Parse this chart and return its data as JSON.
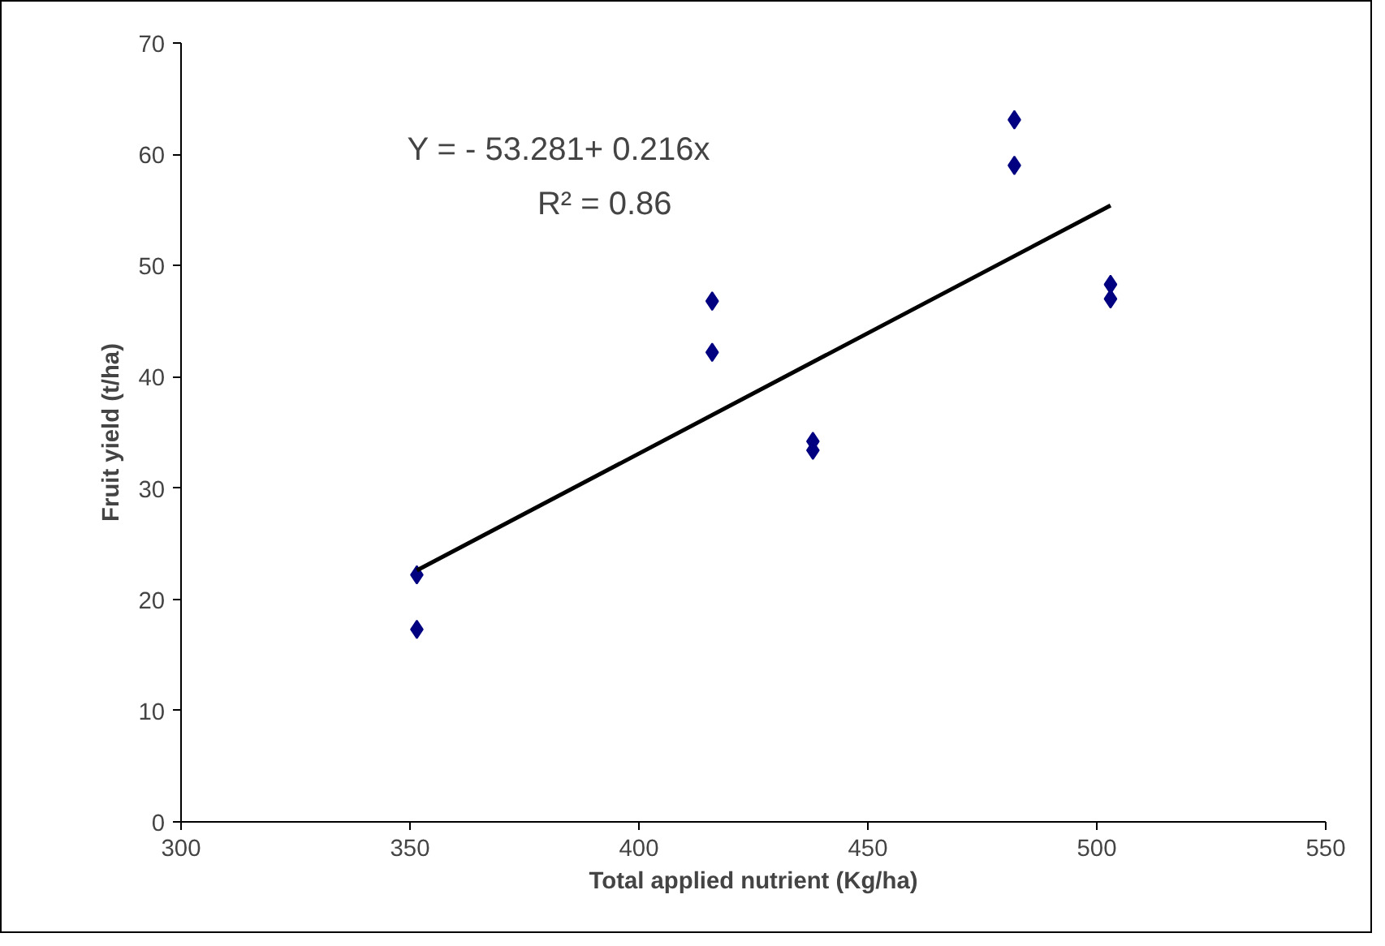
{
  "chart_data": {
    "type": "scatter",
    "xlabel": "Total applied nutrient (Kg/ha)",
    "ylabel": "Fruit yield (t/ha)",
    "annotations": [
      "Y = - 53.281+ 0.216x",
      "R² = 0.86"
    ],
    "xlim": [
      300,
      550
    ],
    "xticks": [
      300,
      350,
      400,
      450,
      500,
      550
    ],
    "ylim": [
      0,
      70
    ],
    "yticks": [
      0,
      10,
      20,
      30,
      40,
      50,
      60,
      70
    ],
    "grid": false,
    "marker": "diamond",
    "series": [
      {
        "color": "#000080",
        "x": [
          351.5,
          351.5,
          416,
          416,
          438,
          438,
          482,
          482,
          503,
          503
        ],
        "values": [
          22.2,
          17.3,
          46.8,
          42.2,
          34.2,
          33.4,
          63.1,
          59.0,
          48.3,
          47.0
        ]
      },
      {
        "type": "line",
        "marker": "none",
        "color": "#000000",
        "x": [
          351.5,
          503
        ],
        "values": [
          22.6,
          55.4
        ]
      }
    ]
  }
}
